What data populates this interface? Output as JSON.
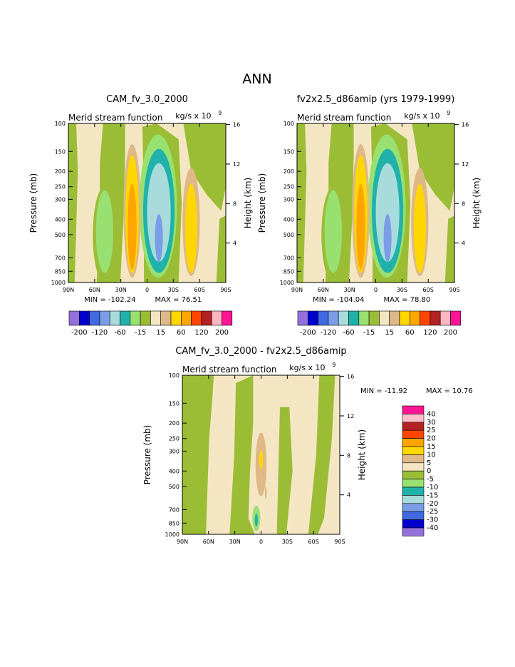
{
  "title": "ANN",
  "chart_data": [
    {
      "type": "heatmap",
      "panel": "top-left",
      "model": "CAM_fv_3.0_2000",
      "field": "Merid stream function",
      "units": "kg/s x 10",
      "units_exp": "9",
      "ylabel": "Pressure (mb)",
      "y2label": "Height (km)",
      "x_ticks": [
        "90N",
        "60N",
        "30N",
        "0",
        "30S",
        "60S",
        "90S"
      ],
      "y_ticks": [
        "100",
        "150",
        "200",
        "250",
        "300",
        "400",
        "500",
        "700",
        "850",
        "1000"
      ],
      "y2_ticks": [
        "16",
        "12",
        "8",
        "4"
      ],
      "min_text": "MIN = -102.24",
      "max_text": "MAX =  76.51",
      "min": -102.24,
      "max": 76.51,
      "colorbar_labels": [
        "-200",
        "-120",
        "-60",
        "-15",
        "15",
        "60",
        "120",
        "200"
      ]
    },
    {
      "type": "heatmap",
      "panel": "top-right",
      "model": "fv2x2.5_d86amip (yrs 1979-1999)",
      "field": "Merid stream function",
      "units": "kg/s x 10",
      "units_exp": "9",
      "ylabel": "Pressure (mb)",
      "y2label": "Height (km)",
      "x_ticks": [
        "90N",
        "60N",
        "30N",
        "0",
        "30S",
        "60S",
        "90S"
      ],
      "y_ticks": [
        "100",
        "150",
        "200",
        "250",
        "300",
        "400",
        "500",
        "700",
        "850",
        "1000"
      ],
      "y2_ticks": [
        "16",
        "12",
        "8",
        "4"
      ],
      "min_text": "MIN = -104.04",
      "max_text": "MAX =  78.80",
      "min": -104.04,
      "max": 78.8,
      "colorbar_labels": [
        "-200",
        "-120",
        "-60",
        "-15",
        "15",
        "60",
        "120",
        "200"
      ]
    },
    {
      "type": "heatmap",
      "panel": "bottom",
      "model": "CAM_fv_3.0_2000 - fv2x2.5_d86amip",
      "field": "Merid stream function",
      "units": "kg/s x 10",
      "units_exp": "9",
      "ylabel": "Pressure (mb)",
      "y2label": "Height (km)",
      "x_ticks": [
        "90N",
        "60N",
        "30N",
        "0",
        "30S",
        "60S",
        "90S"
      ],
      "y_ticks": [
        "100",
        "150",
        "200",
        "250",
        "300",
        "400",
        "500",
        "700",
        "850",
        "1000"
      ],
      "y2_ticks": [
        "16",
        "12",
        "8",
        "4"
      ],
      "min_text": "MIN = -11.92",
      "max_text": "MAX =  10.76",
      "min": -11.92,
      "max": 10.76,
      "colorbar_labels": [
        "40",
        "30",
        "25",
        "20",
        "15",
        "10",
        "5",
        "0",
        "-5",
        "-10",
        "-15",
        "-20",
        "-25",
        "-30",
        "-40"
      ]
    }
  ],
  "colors": {
    "top_scale": [
      "#9370db",
      "#0000cd",
      "#4169e1",
      "#7b9ce6",
      "#a8dcdc",
      "#20b2aa",
      "#98e070",
      "#9abd35",
      "#f5e6c3",
      "#deb887",
      "#ffd700",
      "#ffa500",
      "#ff4500",
      "#b22222",
      "#ffb6c1",
      "#ff1493"
    ],
    "diff_scale": [
      "#ff1493",
      "#ffc0cb",
      "#b22222",
      "#ff4500",
      "#ffa500",
      "#ffd700",
      "#deb887",
      "#f5e6c3",
      "#9abd35",
      "#98e070",
      "#20b2aa",
      "#a8dcdc",
      "#7b9ce6",
      "#4169e1",
      "#0000cd",
      "#9370db"
    ]
  }
}
